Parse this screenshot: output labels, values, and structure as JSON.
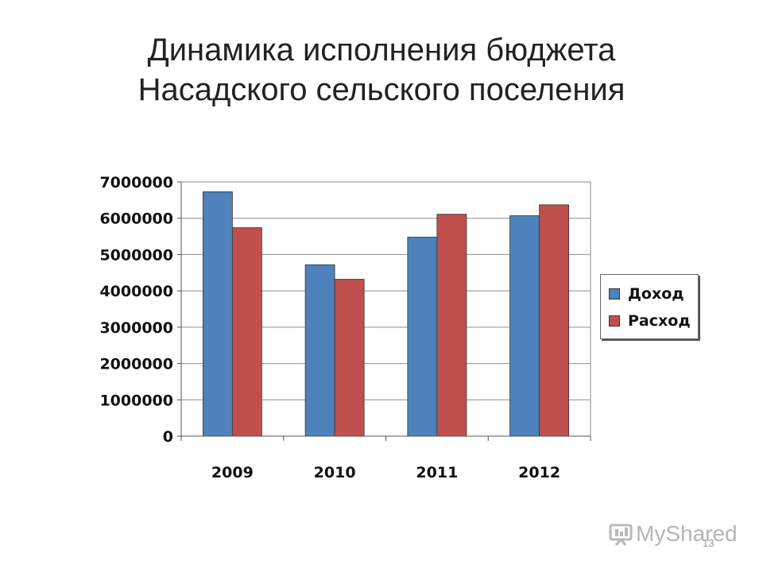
{
  "slide": {
    "title_line1": "Динамика исполнения бюджета",
    "title_line2": "Насадского сельского поселения",
    "page_number": "13",
    "watermark_text": "MyShared"
  },
  "chart_data": {
    "type": "bar",
    "categories": [
      "2009",
      "2010",
      "2011",
      "2012"
    ],
    "series": [
      {
        "name": "Доход",
        "color": "#4f81bd",
        "values": [
          6730000,
          4720000,
          5480000,
          6070000
        ]
      },
      {
        "name": "Расход",
        "color": "#c0504d",
        "values": [
          5740000,
          4320000,
          6110000,
          6370000
        ]
      }
    ],
    "ylim": [
      0,
      7000000
    ],
    "yticks": [
      0,
      1000000,
      2000000,
      3000000,
      4000000,
      5000000,
      6000000,
      7000000
    ],
    "grid": true,
    "legend": "right"
  }
}
